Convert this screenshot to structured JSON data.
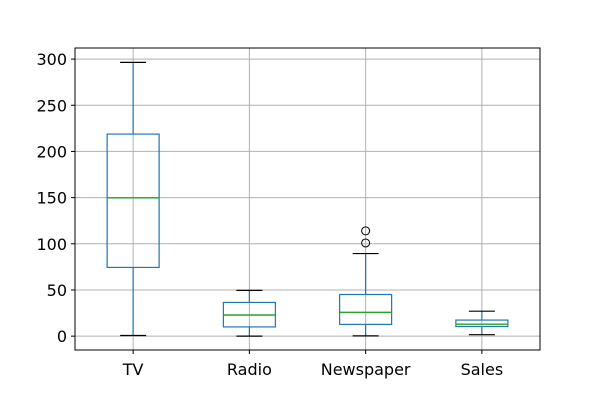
{
  "chart_data": {
    "type": "box",
    "title": "",
    "xlabel": "",
    "ylabel": "",
    "categories": [
      "TV",
      "Radio",
      "Newspaper",
      "Sales"
    ],
    "ylim": [
      -15,
      312
    ],
    "yticks": [
      0,
      50,
      100,
      150,
      200,
      250,
      300
    ],
    "grid": true,
    "series": [
      {
        "category": "TV",
        "whisker_low": 0.7,
        "q1": 74.4,
        "median": 149.75,
        "q3": 218.8,
        "whisker_high": 296.4,
        "outliers": []
      },
      {
        "category": "Radio",
        "whisker_low": 0.0,
        "q1": 9.98,
        "median": 22.9,
        "q3": 36.5,
        "whisker_high": 49.6,
        "outliers": []
      },
      {
        "category": "Newspaper",
        "whisker_low": 0.3,
        "q1": 12.75,
        "median": 25.75,
        "q3": 45.1,
        "whisker_high": 89.4,
        "outliers": [
          100.9,
          114.0
        ]
      },
      {
        "category": "Sales",
        "whisker_low": 1.6,
        "q1": 10.4,
        "median": 12.9,
        "q3": 17.4,
        "whisker_high": 27.0,
        "outliers": []
      }
    ],
    "colors": {
      "box": "#1f77b4",
      "median": "#2ca02c",
      "grid": "#b0b0b0",
      "outlier": "#000000"
    }
  }
}
